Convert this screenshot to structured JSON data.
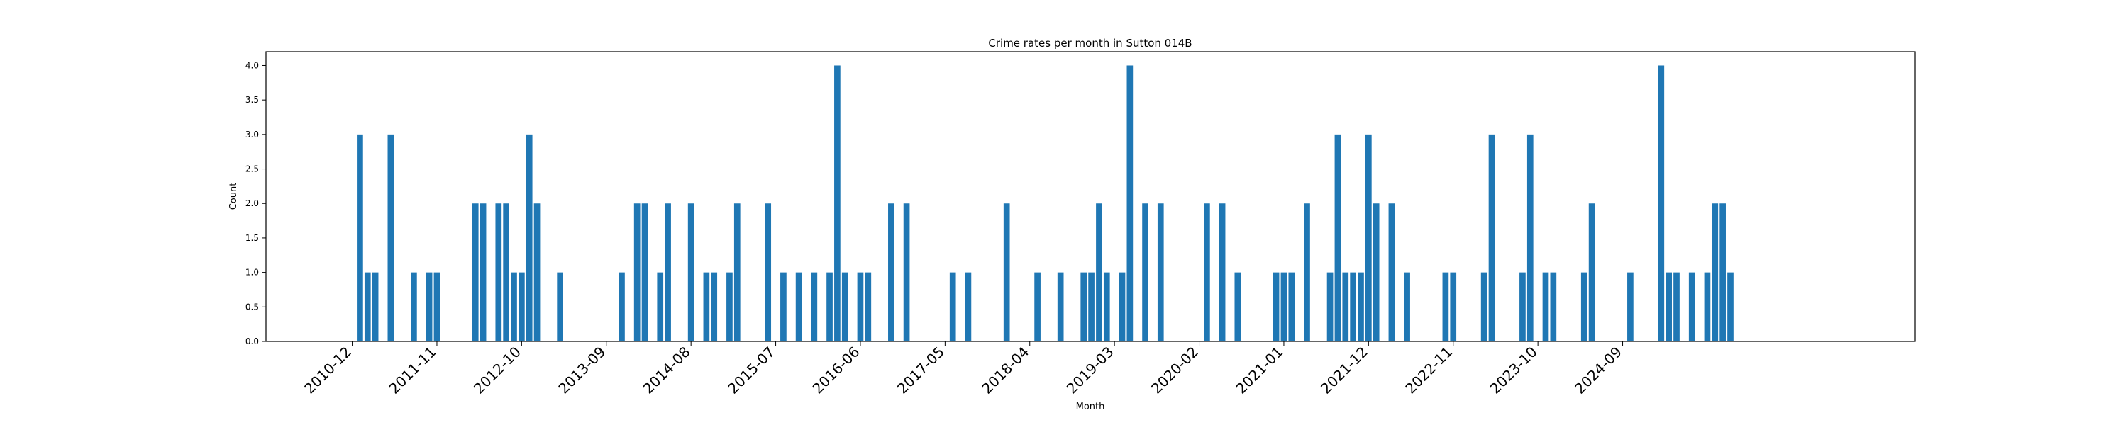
{
  "chart_data": {
    "type": "bar",
    "title": "Crime rates per month in Sutton 014B",
    "xlabel": "Month",
    "ylabel": "Count",
    "ylim": [
      0,
      4.2
    ],
    "yticks": [
      "0.0",
      "0.5",
      "1.0",
      "1.5",
      "2.0",
      "2.5",
      "3.0",
      "3.5",
      "4.0"
    ],
    "xticks": [
      "2010-12",
      "2011-11",
      "2012-10",
      "2013-09",
      "2014-08",
      "2015-07",
      "2016-06",
      "2017-05",
      "2018-04",
      "2019-03",
      "2020-02",
      "2021-01",
      "2021-12",
      "2022-11",
      "2023-10",
      "2024-09"
    ],
    "bar_color": "#1f77b4",
    "grid": false,
    "x_start": "2010-12",
    "x_end": "2025-01",
    "categories": [
      "2011-01",
      "2011-02",
      "2011-03",
      "2011-06",
      "2011-09",
      "2011-11",
      "2011-12",
      "2012-04",
      "2012-05",
      "2012-07",
      "2012-08",
      "2012-09",
      "2012-10",
      "2012-11",
      "2012-12",
      "2013-03",
      "2013-11",
      "2014-01",
      "2014-02",
      "2014-05",
      "2014-06",
      "2014-09",
      "2014-11",
      "2014-12",
      "2015-02",
      "2015-03",
      "2015-07",
      "2015-09",
      "2015-11",
      "2016-01",
      "2016-03",
      "2016-04",
      "2016-05",
      "2016-07",
      "2016-08",
      "2016-11",
      "2017-01",
      "2017-07",
      "2017-09",
      "2018-02",
      "2018-07",
      "2018-10",
      "2019-01",
      "2019-02",
      "2019-03",
      "2019-04",
      "2019-06",
      "2019-07",
      "2019-09",
      "2019-11",
      "2020-06",
      "2020-08",
      "2020-10",
      "2021-01",
      "2021-02",
      "2021-03",
      "2021-05",
      "2021-09",
      "2021-10",
      "2021-11",
      "2021-12",
      "2022-01",
      "2022-02",
      "2022-03",
      "2022-05",
      "2022-07",
      "2022-12",
      "2023-01",
      "2023-05",
      "2023-06",
      "2023-10",
      "2023-11",
      "2024-01",
      "2024-02",
      "2024-06",
      "2024-07",
      "2024-10",
      "2025-03",
      "2025-04",
      "2025-05",
      "2025-07",
      "2025-08",
      "2025-09",
      "2025-10",
      "2025-11"
    ],
    "values": [
      3,
      1,
      1,
      3,
      1,
      1,
      1,
      2,
      2,
      2,
      2,
      1,
      1,
      3,
      2,
      1,
      1,
      2,
      2,
      1,
      2,
      2,
      1,
      1,
      1,
      2,
      2,
      1,
      1,
      1,
      1,
      4,
      1,
      1,
      1,
      2,
      2,
      1,
      1,
      2,
      1,
      1,
      1,
      1,
      2,
      1,
      1,
      4,
      2,
      2,
      2,
      2,
      1,
      1,
      1,
      1,
      2,
      1,
      3,
      1,
      1,
      1,
      3,
      2,
      2,
      1,
      1,
      1,
      1,
      3,
      1,
      3,
      1,
      1,
      1,
      2,
      1,
      4,
      1,
      1,
      1,
      1,
      2,
      2,
      1
    ],
    "x_positions": [
      1,
      2,
      3,
      5,
      8,
      10,
      11,
      16,
      17,
      19,
      20,
      21,
      22,
      23,
      24,
      27,
      35,
      37,
      38,
      40,
      41,
      44,
      46,
      47,
      49,
      50,
      54,
      56,
      58,
      60,
      62,
      63,
      64,
      66,
      67,
      70,
      72,
      78,
      80,
      85,
      89,
      92,
      95,
      96,
      97,
      98,
      100,
      101,
      103,
      105,
      111,
      113,
      115,
      120,
      121,
      122,
      124,
      127,
      128,
      129,
      130,
      131,
      132,
      133,
      135,
      137,
      142,
      143,
      147,
      148,
      152,
      153,
      155,
      156,
      160,
      161,
      166,
      170,
      171,
      172,
      174,
      176,
      177,
      178,
      179
    ]
  }
}
